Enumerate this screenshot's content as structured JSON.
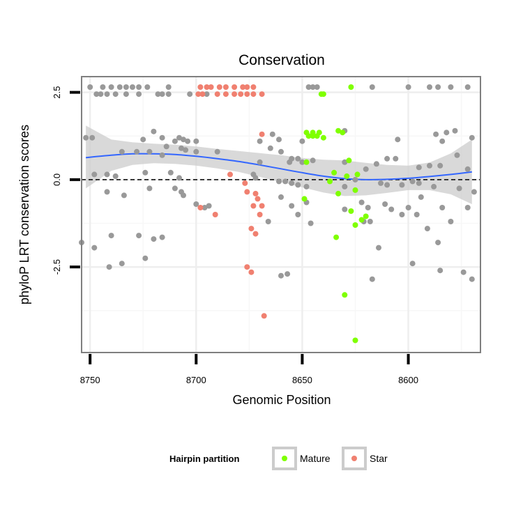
{
  "chart_data": {
    "type": "scatter",
    "title": "Conservation",
    "xlabel": "Genomic Position",
    "ylabel": "phyloP LRT conservation scores",
    "x_reversed": true,
    "xlim": [
      8754,
      8566
    ],
    "ylim": [
      -4.95,
      2.95
    ],
    "x_ticks": [
      8750,
      8700,
      8650,
      8600
    ],
    "y_ticks": [
      2.5,
      0.0,
      -2.5
    ],
    "x_tick_labels": [
      "8750",
      "8700",
      "8650",
      "8600"
    ],
    "y_tick_labels": [
      "2.5",
      "0.0",
      "-2.5"
    ],
    "reference_line_y": 0,
    "grid": true,
    "legend": {
      "title": "Hairpin partition",
      "placement": "bottom",
      "entries": [
        {
          "label": "Mature",
          "color": "#7fff00"
        },
        {
          "label": "Star",
          "color": "#f08070"
        }
      ]
    },
    "colors": {
      "other": "#999999",
      "mature": "#7fff00",
      "star": "#f08070",
      "smooth": "#3366ff",
      "band": "#cccccc"
    },
    "smooth_line": {
      "x": [
        8752,
        8740,
        8730,
        8720,
        8710,
        8700,
        8690,
        8680,
        8670,
        8660,
        8650,
        8640,
        8630,
        8620,
        8610,
        8600,
        8590,
        8580,
        8570
      ],
      "y": [
        0.63,
        0.7,
        0.74,
        0.74,
        0.72,
        0.67,
        0.6,
        0.52,
        0.42,
        0.31,
        0.2,
        0.1,
        0.03,
        0.0,
        0.01,
        0.04,
        0.09,
        0.15,
        0.22
      ],
      "lower": [
        -0.25,
        0.25,
        0.42,
        0.47,
        0.45,
        0.4,
        0.32,
        0.22,
        0.08,
        -0.07,
        -0.22,
        -0.37,
        -0.47,
        -0.45,
        -0.38,
        -0.3,
        -0.3,
        -0.42,
        -0.7
      ],
      "upper": [
        1.55,
        1.15,
        1.07,
        1.03,
        1.0,
        0.95,
        0.88,
        0.82,
        0.76,
        0.7,
        0.62,
        0.57,
        0.55,
        0.48,
        0.42,
        0.4,
        0.49,
        0.75,
        1.15
      ]
    },
    "series": [
      {
        "group": "other",
        "points": [
          [
            8750,
            2.65
          ],
          [
            8744,
            2.65
          ],
          [
            8740,
            2.65
          ],
          [
            8736,
            2.65
          ],
          [
            8733,
            2.65
          ],
          [
            8730,
            2.65
          ],
          [
            8727,
            2.65
          ],
          [
            8723,
            2.65
          ],
          [
            8713,
            2.65
          ],
          [
            8647,
            2.65
          ],
          [
            8645,
            2.65
          ],
          [
            8643,
            2.65
          ],
          [
            8617,
            2.65
          ],
          [
            8600,
            2.65
          ],
          [
            8590,
            2.65
          ],
          [
            8586,
            2.65
          ],
          [
            8580,
            2.65
          ],
          [
            8572,
            2.65
          ],
          [
            8747,
            2.45
          ],
          [
            8745,
            2.45
          ],
          [
            8742,
            2.45
          ],
          [
            8738,
            2.45
          ],
          [
            8733,
            2.45
          ],
          [
            8727,
            2.45
          ],
          [
            8716,
            2.45
          ],
          [
            8718,
            2.45
          ],
          [
            8713,
            2.45
          ],
          [
            8703,
            2.45
          ],
          [
            8695,
            2.45
          ],
          [
            8752,
            1.2
          ],
          [
            8749,
            1.2
          ],
          [
            8725,
            1.15
          ],
          [
            8720,
            1.38
          ],
          [
            8716,
            1.2
          ],
          [
            8710,
            1.1
          ],
          [
            8708,
            1.2
          ],
          [
            8706,
            1.15
          ],
          [
            8704,
            1.1
          ],
          [
            8700,
            1.1
          ],
          [
            8707,
            0.9
          ],
          [
            8705,
            0.85
          ],
          [
            8714,
            0.95
          ],
          [
            8670,
            1.1
          ],
          [
            8664,
            1.3
          ],
          [
            8661,
            1.15
          ],
          [
            8650,
            1.1
          ],
          [
            8630,
            1.4
          ],
          [
            8605,
            1.15
          ],
          [
            8587,
            1.3
          ],
          [
            8584,
            1.1
          ],
          [
            8582,
            1.35
          ],
          [
            8578,
            1.4
          ],
          [
            8570,
            1.2
          ],
          [
            8735,
            0.8
          ],
          [
            8728,
            0.8
          ],
          [
            8722,
            0.8
          ],
          [
            8716,
            0.7
          ],
          [
            8700,
            0.8
          ],
          [
            8690,
            0.8
          ],
          [
            8670,
            0.5
          ],
          [
            8665,
            0.9
          ],
          [
            8660,
            0.8
          ],
          [
            8656,
            0.5
          ],
          [
            8655,
            0.6
          ],
          [
            8652,
            0.6
          ],
          [
            8650,
            0.5
          ],
          [
            8645,
            0.55
          ],
          [
            8630,
            0.5
          ],
          [
            8620,
            0.3
          ],
          [
            8615,
            0.45
          ],
          [
            8610,
            0.6
          ],
          [
            8606,
            0.6
          ],
          [
            8595,
            0.35
          ],
          [
            8590,
            0.4
          ],
          [
            8585,
            0.4
          ],
          [
            8577,
            0.7
          ],
          [
            8572,
            0.3
          ],
          [
            8748,
            0.15
          ],
          [
            8742,
            0.15
          ],
          [
            8738,
            0.1
          ],
          [
            8724,
            0.2
          ],
          [
            8712,
            0.2
          ],
          [
            8708,
            0.05
          ],
          [
            8673,
            0.15
          ],
          [
            8672,
            0.05
          ],
          [
            8661,
            -0.05
          ],
          [
            8658,
            -0.05
          ],
          [
            8655,
            -0.1
          ],
          [
            8652,
            -0.15
          ],
          [
            8648,
            -0.2
          ],
          [
            8630,
            -0.2
          ],
          [
            8625,
            0.0
          ],
          [
            8613,
            -0.1
          ],
          [
            8610,
            -0.15
          ],
          [
            8603,
            -0.15
          ],
          [
            8598,
            -0.05
          ],
          [
            8595,
            -0.1
          ],
          [
            8588,
            -0.2
          ],
          [
            8576,
            -0.25
          ],
          [
            8569,
            -0.35
          ],
          [
            8742,
            -0.35
          ],
          [
            8734,
            -0.45
          ],
          [
            8722,
            -0.25
          ],
          [
            8710,
            -0.25
          ],
          [
            8707,
            -0.35
          ],
          [
            8706,
            -0.45
          ],
          [
            8700,
            -0.7
          ],
          [
            8694,
            -0.75
          ],
          [
            8660,
            -0.5
          ],
          [
            8655,
            -0.75
          ],
          [
            8648,
            -0.65
          ],
          [
            8630,
            -0.85
          ],
          [
            8622,
            -0.65
          ],
          [
            8619,
            -0.8
          ],
          [
            8611,
            -0.7
          ],
          [
            8608,
            -0.85
          ],
          [
            8600,
            -0.8
          ],
          [
            8594,
            -0.5
          ],
          [
            8584,
            -0.8
          ],
          [
            8572,
            -0.8
          ],
          [
            8696,
            -0.8
          ],
          [
            8666,
            -1.2
          ],
          [
            8652,
            -1.0
          ],
          [
            8646,
            -1.25
          ],
          [
            8621,
            -1.2
          ],
          [
            8618,
            -1.2
          ],
          [
            8603,
            -1.0
          ],
          [
            8596,
            -1.0
          ],
          [
            8591,
            -1.4
          ],
          [
            8586,
            -1.8
          ],
          [
            8580,
            -1.2
          ],
          [
            8754,
            -1.8
          ],
          [
            8748,
            -1.95
          ],
          [
            8740,
            -1.6
          ],
          [
            8727,
            -1.6
          ],
          [
            8720,
            -1.7
          ],
          [
            8716,
            -1.65
          ],
          [
            8614,
            -1.95
          ],
          [
            8598,
            -2.4
          ],
          [
            8585,
            -2.6
          ],
          [
            8574,
            -2.65
          ],
          [
            8570,
            -2.85
          ],
          [
            8741,
            -2.5
          ],
          [
            8735,
            -2.4
          ],
          [
            8724,
            -2.25
          ],
          [
            8660,
            -2.75
          ],
          [
            8657,
            -2.7
          ],
          [
            8617,
            -2.85
          ]
        ]
      },
      {
        "group": "mature",
        "points": [
          [
            8627,
            2.65
          ],
          [
            8640,
            2.45
          ],
          [
            8641,
            2.45
          ],
          [
            8645,
            1.35
          ],
          [
            8648,
            1.35
          ],
          [
            8642,
            1.35
          ],
          [
            8647,
            1.25
          ],
          [
            8645,
            1.25
          ],
          [
            8643,
            1.25
          ],
          [
            8640,
            1.2
          ],
          [
            8633,
            1.4
          ],
          [
            8631,
            1.35
          ],
          [
            8648,
            0.5
          ],
          [
            8628,
            0.55
          ],
          [
            8635,
            0.2
          ],
          [
            8629,
            0.1
          ],
          [
            8624,
            0.15
          ],
          [
            8637,
            -0.05
          ],
          [
            8633,
            -0.4
          ],
          [
            8625,
            -0.3
          ],
          [
            8649,
            -0.55
          ],
          [
            8627,
            -0.9
          ],
          [
            8622,
            -1.15
          ],
          [
            8625,
            -1.3
          ],
          [
            8620,
            -1.05
          ],
          [
            8634,
            -1.65
          ],
          [
            8630,
            -3.3
          ],
          [
            8625,
            -4.6
          ]
        ]
      },
      {
        "group": "star",
        "points": [
          [
            8698,
            2.65
          ],
          [
            8695,
            2.65
          ],
          [
            8693,
            2.65
          ],
          [
            8689,
            2.65
          ],
          [
            8686,
            2.65
          ],
          [
            8682,
            2.65
          ],
          [
            8678,
            2.65
          ],
          [
            8676,
            2.65
          ],
          [
            8673,
            2.65
          ],
          [
            8699,
            2.45
          ],
          [
            8697,
            2.45
          ],
          [
            8690,
            2.45
          ],
          [
            8686,
            2.45
          ],
          [
            8682,
            2.45
          ],
          [
            8679,
            2.45
          ],
          [
            8676,
            2.45
          ],
          [
            8673,
            2.45
          ],
          [
            8669,
            2.45
          ],
          [
            8669,
            1.3
          ],
          [
            8684,
            0.15
          ],
          [
            8677,
            -0.1
          ],
          [
            8676,
            -0.35
          ],
          [
            8672,
            -0.4
          ],
          [
            8671,
            -0.55
          ],
          [
            8669,
            -0.75
          ],
          [
            8673,
            -0.75
          ],
          [
            8698,
            -0.8
          ],
          [
            8691,
            -1.0
          ],
          [
            8670,
            -1.0
          ],
          [
            8674,
            -1.4
          ],
          [
            8672,
            -1.55
          ],
          [
            8676,
            -2.5
          ],
          [
            8674,
            -2.65
          ],
          [
            8668,
            -3.9
          ]
        ]
      }
    ]
  }
}
